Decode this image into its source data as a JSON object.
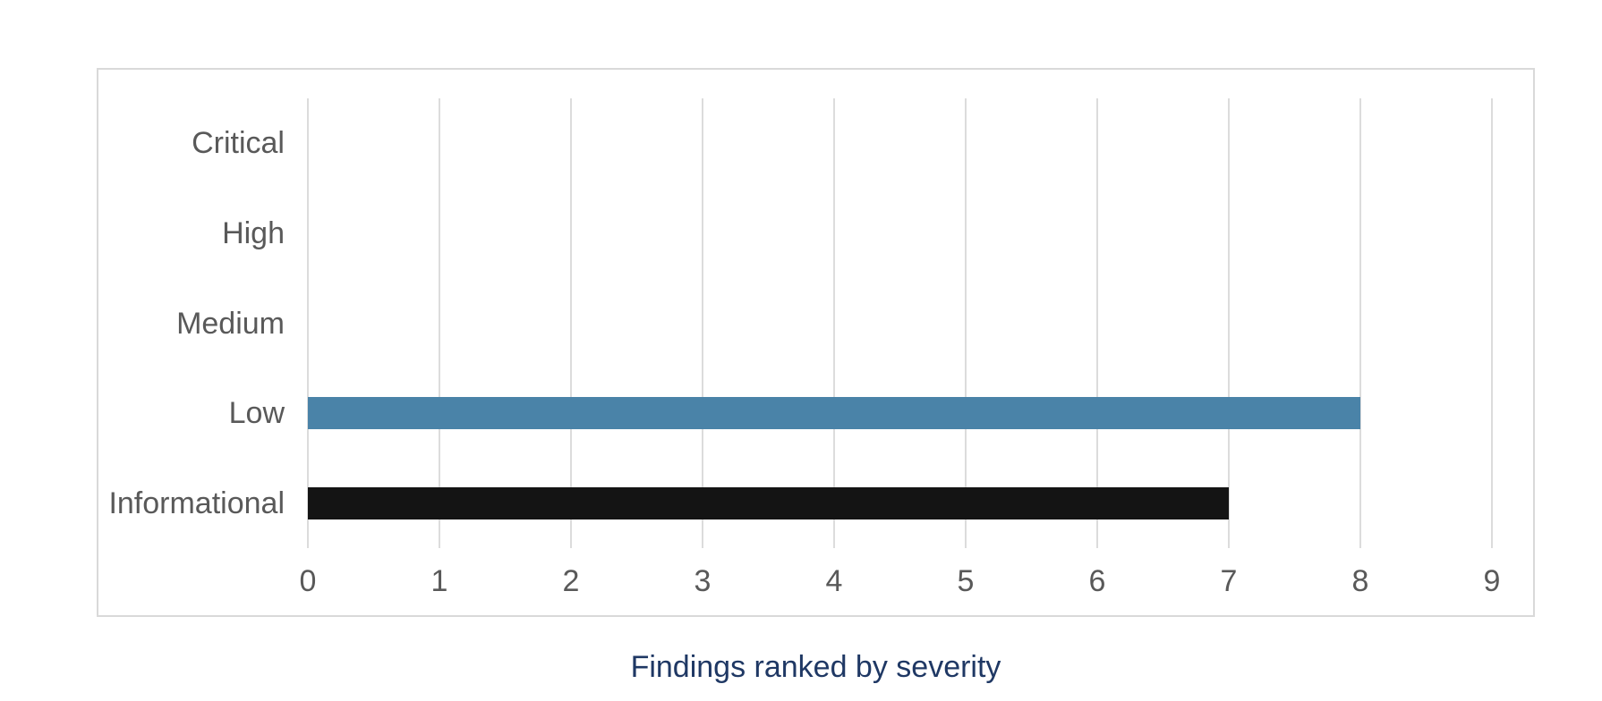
{
  "chart_data": {
    "type": "bar",
    "orientation": "horizontal",
    "title": "Findings ranked by severity",
    "title_color": "#1f3864",
    "categories": [
      "Critical",
      "High",
      "Medium",
      "Low",
      "Informational"
    ],
    "values": [
      0,
      0,
      0,
      8,
      7
    ],
    "bar_colors": [
      null,
      null,
      null,
      "#4a83a8",
      "#141414"
    ],
    "x_ticks": [
      "0",
      "1",
      "2",
      "3",
      "4",
      "5",
      "6",
      "7",
      "8",
      "9"
    ],
    "xlim": [
      0,
      9.3
    ],
    "xlabel": "",
    "ylabel": "",
    "grid": true,
    "gridline_color": "#dcdcdc",
    "axis_label_color": "#595959",
    "plot_border_color": "#d9d9d9",
    "background_color": "#ffffff",
    "legend": "none"
  }
}
